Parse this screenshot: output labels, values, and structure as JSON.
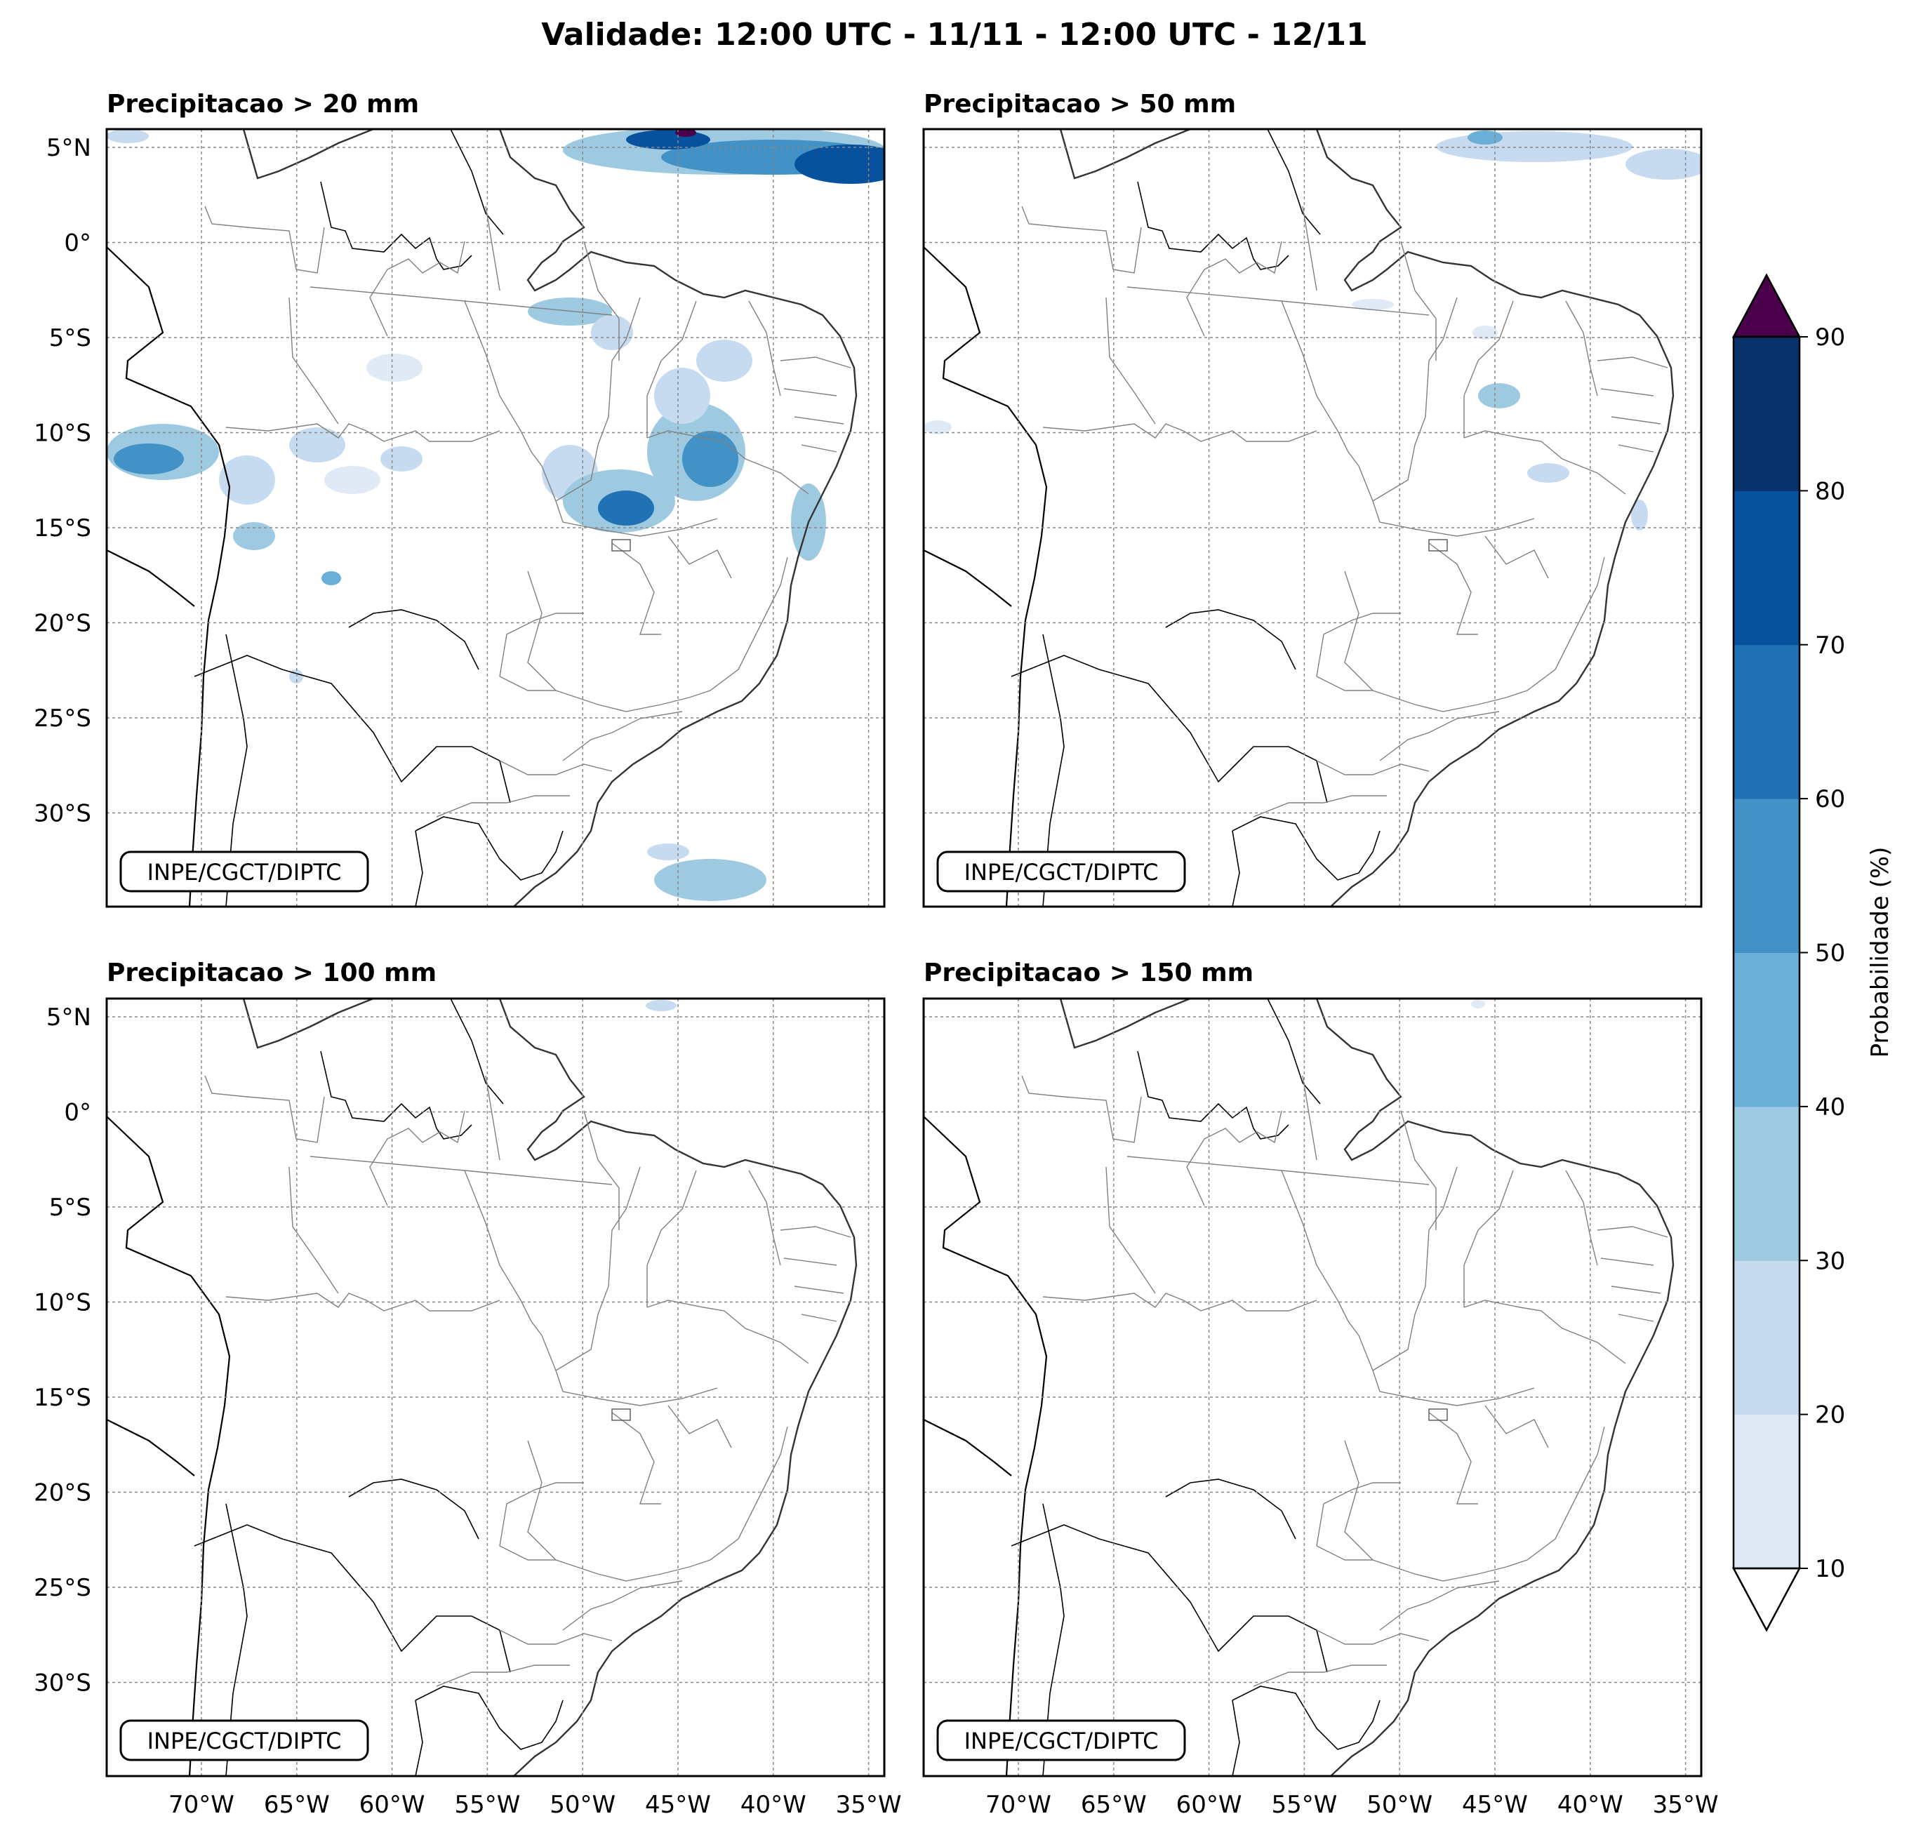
{
  "title": "Validade: 12:00 UTC - 11/11 - 12:00 UTC - 12/11",
  "credit": "INPE/CGCT/DIPTC",
  "panels": [
    {
      "title": "Precipitacao > 20 mm"
    },
    {
      "title": "Precipitacao > 50 mm"
    },
    {
      "title": "Precipitacao > 100 mm"
    },
    {
      "title": "Precipitacao > 150 mm"
    }
  ],
  "lat_ticks": [
    "5°N",
    "0°",
    "5°S",
    "10°S",
    "15°S",
    "20°S",
    "25°S",
    "30°S"
  ],
  "lon_ticks": [
    "70°W",
    "65°W",
    "60°W",
    "55°W",
    "50°W",
    "45°W",
    "40°W",
    "35°W"
  ],
  "colorbar": {
    "label": "Probabilidade (%)",
    "ticks": [
      "10",
      "20",
      "30",
      "40",
      "50",
      "60",
      "70",
      "80",
      "90"
    ],
    "colors": [
      "#dfeaf6",
      "#c6dbef",
      "#9ecae1",
      "#6baed6",
      "#4292c6",
      "#2171b5",
      "#08519c",
      "#08306b"
    ],
    "over_color": "#4a004a",
    "under_color": "#ffffff"
  },
  "colors": {
    "border": "#000000",
    "state_lines": "#808080",
    "grid": "#888888"
  }
}
